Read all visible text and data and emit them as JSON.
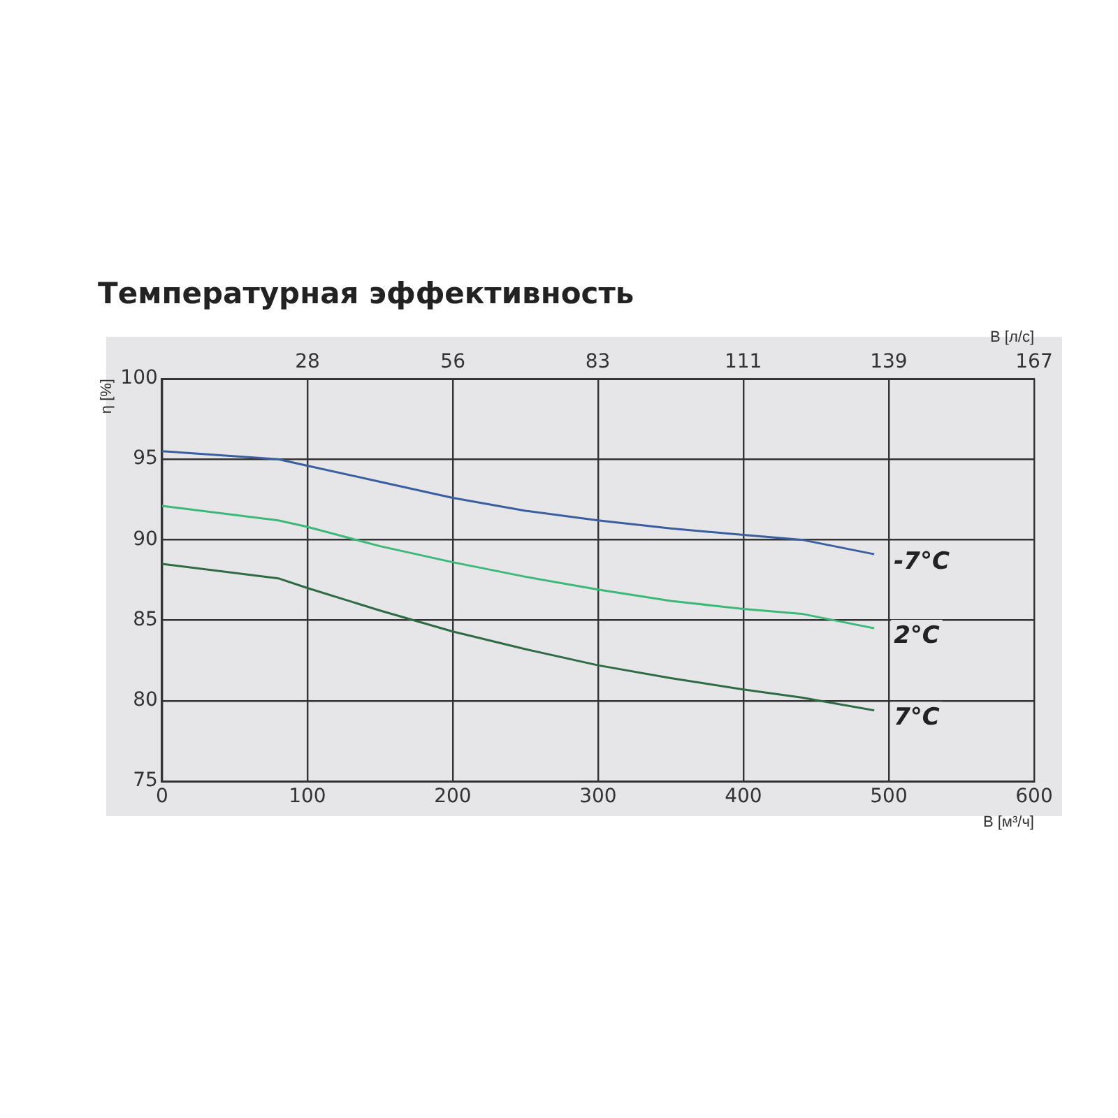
{
  "chart_data": {
    "type": "line",
    "title": "Температурная эффективность",
    "xlabel": "В [м³/ч]",
    "x2label": "В [л/с]",
    "ylabel": "η [%]",
    "xlim": [
      0,
      600
    ],
    "xticks": [
      0,
      100,
      200,
      300,
      400,
      500,
      600
    ],
    "x2lim": [
      0,
      166.7
    ],
    "x2ticks": [
      {
        "value": 27.8,
        "label": "28"
      },
      {
        "value": 55.6,
        "label": "56"
      },
      {
        "value": 83.3,
        "label": "83"
      },
      {
        "value": 111.1,
        "label": "111"
      },
      {
        "value": 138.9,
        "label": "139"
      },
      {
        "value": 166.7,
        "label": "167"
      }
    ],
    "ylim": [
      75,
      100
    ],
    "yticks": [
      75,
      80,
      85,
      90,
      95,
      100
    ],
    "grid": true,
    "legend": false,
    "marker": "none",
    "line_style": "solid",
    "x": [
      0,
      80,
      100,
      150,
      200,
      250,
      300,
      350,
      400,
      440,
      490
    ],
    "series": [
      {
        "name": "-7°C",
        "color": "#3a5e9e",
        "values": [
          95.5,
          95.0,
          94.6,
          93.6,
          92.6,
          91.8,
          91.2,
          90.7,
          90.3,
          90.0,
          89.1
        ]
      },
      {
        "name": "2°C",
        "color": "#3cb878",
        "values": [
          92.1,
          91.2,
          90.8,
          89.6,
          88.6,
          87.7,
          86.9,
          86.2,
          85.7,
          85.4,
          84.5
        ]
      },
      {
        "name": "7°C",
        "color": "#2e6b45",
        "values": [
          88.5,
          87.6,
          87.0,
          85.6,
          84.3,
          83.2,
          82.2,
          81.4,
          80.7,
          80.2,
          79.4
        ]
      }
    ]
  }
}
